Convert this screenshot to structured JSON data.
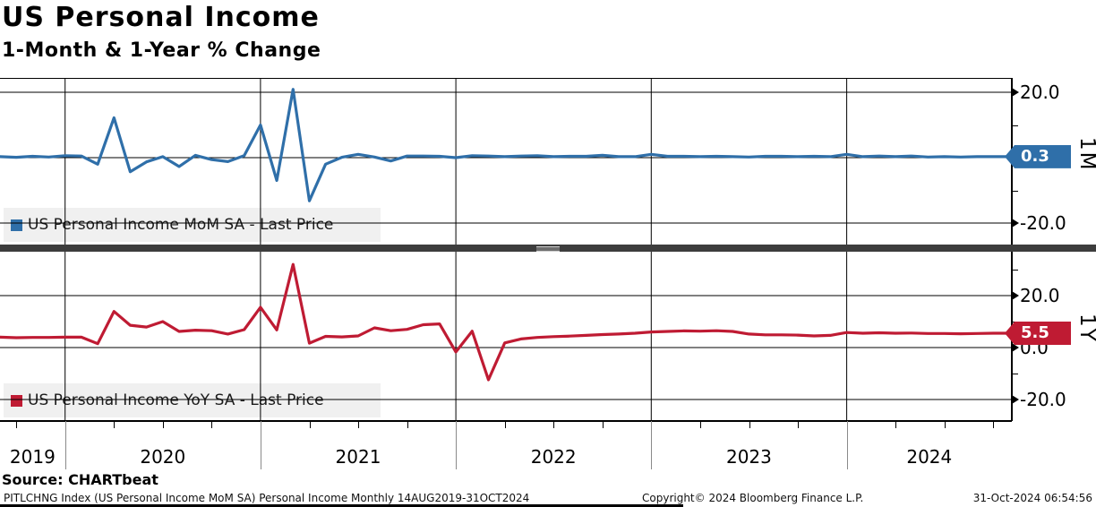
{
  "header": {
    "title": "US Personal Income",
    "subtitle": "1-Month & 1-Year % Change"
  },
  "source": "Source: CHARTbeat",
  "footer": {
    "security_info": "PITLCHNG Index (US Personal Income MoM SA) Personal Income  Monthly 14AUG2019-31OCT2024",
    "copyright": "Copyright© 2024 Bloomberg Finance L.P.",
    "timestamp": "31-Oct-2024 06:54:56"
  },
  "colors": {
    "mom_line": "#2f6fa9",
    "yoy_line": "#bf1b33",
    "divider": "#3d3d3d",
    "legend_bg": "#f0f0f0"
  },
  "x_axis": {
    "year_labels": [
      "2019",
      "2020",
      "2021",
      "2022",
      "2023",
      "2024"
    ]
  },
  "chart_data": [
    {
      "type": "line",
      "panel": "top",
      "legend": "US Personal Income MoM SA - Last Price",
      "axis_label": "1M",
      "last_price_label": "0.3",
      "last_price": 0.3,
      "color": "#2f6fa9",
      "x_start": "Aug 2019",
      "x_end": "Oct 2024",
      "frequency": "monthly",
      "ylim": [
        -26.6,
        24.4
      ],
      "yticks": [
        {
          "value": 20,
          "label": "20.0"
        },
        {
          "value": -20,
          "label": "-20.0"
        }
      ],
      "minor_yticks": [
        10,
        -10
      ],
      "grid_values": [
        20,
        0,
        -20
      ],
      "values": [
        0.4,
        0.3,
        0.1,
        0.4,
        0.2,
        0.6,
        0.5,
        -2.0,
        12.2,
        -4.3,
        -1.3,
        0.3,
        -2.7,
        0.7,
        -0.6,
        -1.2,
        0.6,
        10.0,
        -7.0,
        20.9,
        -13.2,
        -2.0,
        0.1,
        1.0,
        0.2,
        -1.0,
        0.5,
        0.5,
        0.4,
        0.0,
        0.6,
        0.5,
        0.3,
        0.5,
        0.6,
        0.3,
        0.4,
        0.4,
        0.7,
        0.3,
        0.3,
        1.0,
        0.4,
        0.4,
        0.3,
        0.4,
        0.3,
        0.2,
        0.4,
        0.4,
        0.3,
        0.4,
        0.3,
        1.0,
        0.3,
        0.5,
        0.3,
        0.5,
        0.2,
        0.3,
        0.2,
        0.3,
        0.3
      ]
    },
    {
      "type": "line",
      "panel": "bottom",
      "legend": "US Personal Income YoY SA - Last Price",
      "axis_label": "1Y",
      "last_price_label": "5.5",
      "last_price": 5.5,
      "color": "#bf1b33",
      "x_start": "Aug 2019",
      "x_end": "Oct 2024",
      "frequency": "monthly",
      "ylim": [
        -28.3,
        36.9
      ],
      "yticks": [
        {
          "value": 20,
          "label": "20.0"
        },
        {
          "value": 0,
          "label": "0.0"
        },
        {
          "value": -20,
          "label": "-20.0"
        }
      ],
      "minor_yticks": [
        30,
        10,
        -10
      ],
      "grid_values": [
        20,
        0,
        -20
      ],
      "values": [
        4.1,
        4.0,
        3.8,
        3.9,
        3.9,
        4.0,
        4.0,
        1.5,
        13.9,
        8.6,
        7.9,
        10.0,
        6.2,
        6.7,
        6.5,
        5.2,
        6.9,
        15.5,
        6.8,
        32.0,
        1.7,
        4.3,
        4.1,
        4.5,
        7.6,
        6.5,
        7.0,
        8.8,
        9.1,
        -1.7,
        6.3,
        -12.4,
        1.8,
        3.3,
        3.9,
        4.2,
        4.4,
        4.7,
        5.0,
        5.2,
        5.5,
        6.0,
        6.2,
        6.4,
        6.3,
        6.5,
        6.2,
        5.2,
        4.9,
        4.9,
        4.8,
        4.5,
        4.7,
        5.8,
        5.5,
        5.7,
        5.5,
        5.6,
        5.4,
        5.4,
        5.3,
        5.4,
        5.5
      ]
    }
  ]
}
